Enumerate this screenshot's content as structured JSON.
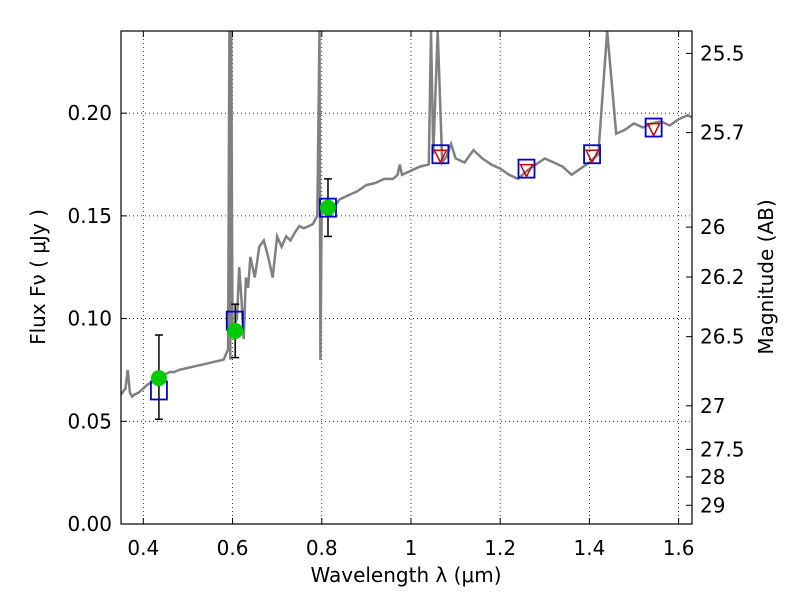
{
  "chart_data": {
    "type": "line",
    "xlabel": "Wavelength  λ (μm)",
    "ylabel_left": "Flux  Fν  ( μJy )",
    "ylabel_right": "Magnitude (AB)",
    "xlim": [
      0.35,
      1.63
    ],
    "ylim": [
      0.0,
      0.24
    ],
    "grid": true,
    "xticks": [
      0.4,
      0.6,
      0.8,
      1.0,
      1.2,
      1.4,
      1.6
    ],
    "xtick_labels": [
      "0.4",
      "0.6",
      "0.8",
      "1",
      "1.2",
      "1.4",
      "1.6"
    ],
    "yticks": [
      0.0,
      0.05,
      0.1,
      0.15,
      0.2
    ],
    "ytick_labels": [
      "0.00",
      "0.05",
      "0.10",
      "0.15",
      "0.20"
    ],
    "mag_ticks": [
      "25.5",
      "25.7",
      "26",
      "26.2",
      "26.5",
      "27",
      "27.5",
      "28",
      "29"
    ],
    "model_spectrum": {
      "color": "#808080",
      "x": [
        0.35,
        0.36,
        0.365,
        0.37,
        0.375,
        0.38,
        0.39,
        0.4,
        0.41,
        0.42,
        0.43,
        0.44,
        0.45,
        0.46,
        0.47,
        0.48,
        0.5,
        0.52,
        0.54,
        0.56,
        0.58,
        0.59,
        0.593,
        0.595,
        0.597,
        0.6,
        0.61,
        0.615,
        0.62,
        0.625,
        0.63,
        0.635,
        0.64,
        0.65,
        0.66,
        0.67,
        0.68,
        0.69,
        0.7,
        0.71,
        0.72,
        0.73,
        0.74,
        0.75,
        0.76,
        0.78,
        0.79,
        0.795,
        0.797,
        0.8,
        0.81,
        0.82,
        0.83,
        0.84,
        0.86,
        0.88,
        0.9,
        0.92,
        0.94,
        0.96,
        0.97,
        0.975,
        0.98,
        1.0,
        1.02,
        1.04,
        1.045,
        1.05,
        1.06,
        1.07,
        1.08,
        1.09,
        1.1,
        1.12,
        1.14,
        1.16,
        1.18,
        1.2,
        1.22,
        1.24,
        1.26,
        1.28,
        1.3,
        1.32,
        1.34,
        1.36,
        1.38,
        1.4,
        1.42,
        1.44,
        1.46,
        1.48,
        1.5,
        1.52,
        1.54,
        1.56,
        1.58,
        1.6,
        1.62,
        1.63
      ],
      "y": [
        0.063,
        0.066,
        0.075,
        0.064,
        0.062,
        0.063,
        0.064,
        0.066,
        0.068,
        0.069,
        0.071,
        0.072,
        0.073,
        0.074,
        0.074,
        0.075,
        0.076,
        0.077,
        0.078,
        0.079,
        0.08,
        0.085,
        0.24,
        0.08,
        0.24,
        0.094,
        0.1,
        0.125,
        0.11,
        0.09,
        0.12,
        0.115,
        0.13,
        0.12,
        0.135,
        0.138,
        0.13,
        0.12,
        0.14,
        0.135,
        0.14,
        0.138,
        0.142,
        0.145,
        0.144,
        0.146,
        0.15,
        0.24,
        0.08,
        0.155,
        0.152,
        0.15,
        0.155,
        0.158,
        0.16,
        0.162,
        0.165,
        0.166,
        0.168,
        0.168,
        0.17,
        0.175,
        0.17,
        0.172,
        0.174,
        0.175,
        0.24,
        0.18,
        0.24,
        0.176,
        0.179,
        0.185,
        0.178,
        0.176,
        0.182,
        0.178,
        0.175,
        0.173,
        0.17,
        0.168,
        0.172,
        0.175,
        0.178,
        0.176,
        0.174,
        0.17,
        0.173,
        0.176,
        0.18,
        0.24,
        0.19,
        0.192,
        0.195,
        0.193,
        0.195,
        0.196,
        0.194,
        0.197,
        0.199,
        0.198
      ]
    },
    "model_photometry": {
      "color": "#0000cc",
      "marker": "square",
      "x": [
        0.435,
        0.605,
        0.814,
        1.066,
        1.259,
        1.406,
        1.544
      ],
      "y": [
        0.065,
        0.099,
        0.154,
        0.18,
        0.173,
        0.18,
        0.193
      ]
    },
    "observed_detections": {
      "color": "#00cc00",
      "marker": "circle",
      "x": [
        0.435,
        0.606,
        0.814
      ],
      "y": [
        0.071,
        0.094,
        0.154
      ],
      "yerr_low": [
        0.02,
        0.013,
        0.014
      ],
      "yerr_high": [
        0.021,
        0.013,
        0.014
      ]
    },
    "observed_limits": {
      "color": "#cc0000",
      "marker": "triangle-down",
      "x": [
        1.066,
        1.259,
        1.406,
        1.544
      ],
      "y": [
        0.179,
        0.172,
        0.179,
        0.192
      ]
    }
  }
}
